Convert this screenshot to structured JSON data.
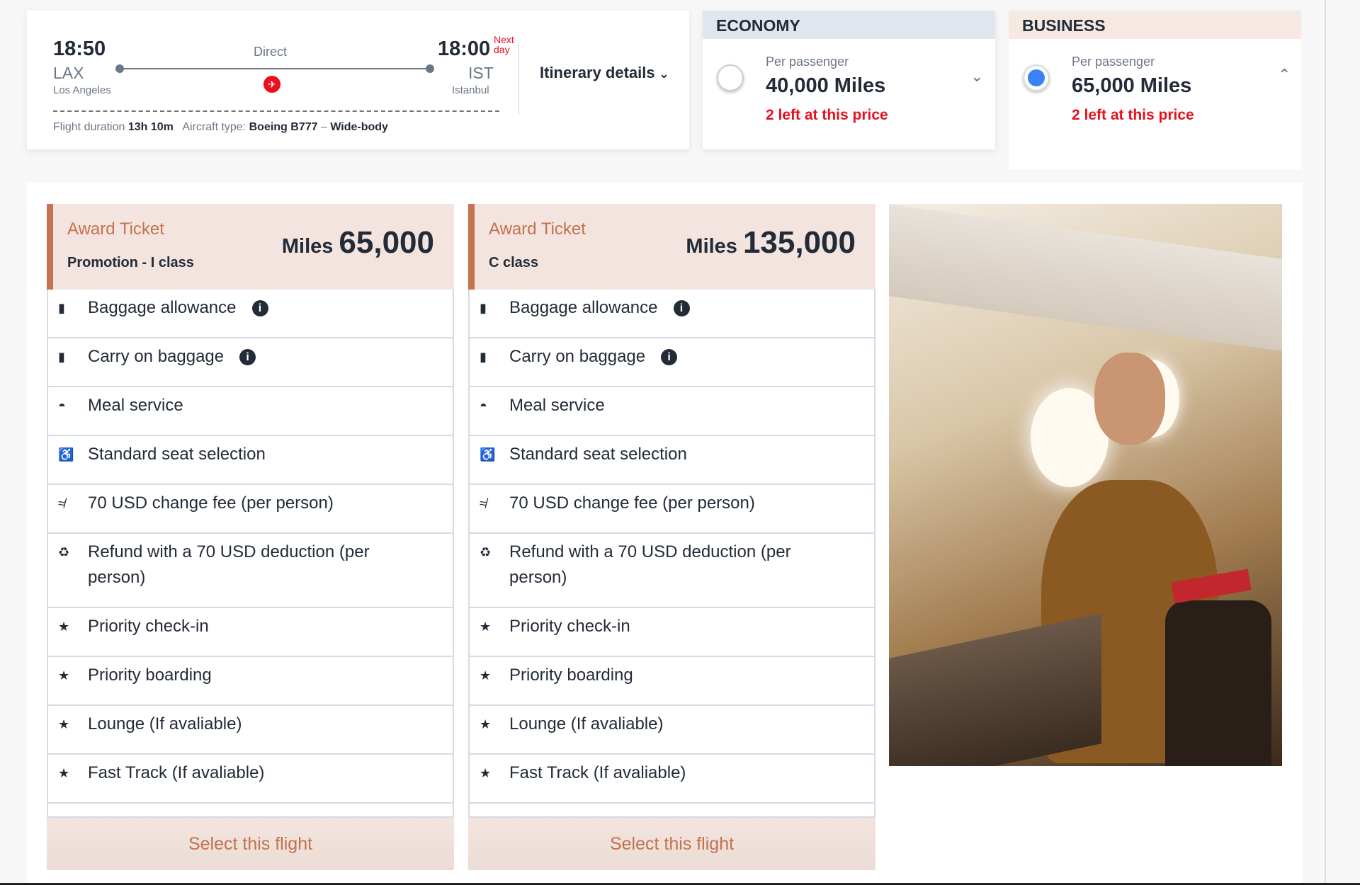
{
  "flight": {
    "dep_time": "18:50",
    "dep_code": "LAX",
    "dep_city": "Los Angeles",
    "arr_time": "18:00",
    "next_day": "Next day",
    "arr_code": "IST",
    "arr_city": "Istanbul",
    "stops": "Direct",
    "duration_label": "Flight duration",
    "duration": "13h 10m",
    "aircraft_label": "Aircraft type:",
    "aircraft": "Boeing B777",
    "body": "Wide-body",
    "itinerary": "Itinerary details"
  },
  "cabins": [
    {
      "name": "ECONOMY",
      "per": "Per passenger",
      "miles": "40,000 Miles",
      "avail": "2 left at this price",
      "selected": false,
      "header_color": "#e1e5ed"
    },
    {
      "name": "BUSINESS",
      "per": "Per passenger",
      "miles": "65,000 Miles",
      "avail": "2 left at this price",
      "selected": true,
      "header_color": "#f6e9e2"
    }
  ],
  "fares": [
    {
      "title": "Award Ticket",
      "class": "Promotion - I class",
      "miles_label": "Miles",
      "miles": "65,000",
      "button": "Select this flight"
    },
    {
      "title": "Award Ticket",
      "class": "C class",
      "miles_label": "Miles",
      "miles": "135,000",
      "button": "Select this flight"
    }
  ],
  "features": [
    {
      "icon": "baggage-icon",
      "glyph": "▮",
      "label": "Baggage allowance",
      "info": true
    },
    {
      "icon": "carry-on-icon",
      "glyph": "▮",
      "label": "Carry on baggage",
      "info": true
    },
    {
      "icon": "meal-icon",
      "glyph": "◓",
      "label": "Meal service"
    },
    {
      "icon": "seat-icon",
      "glyph": "♿",
      "label": "Standard seat selection"
    },
    {
      "icon": "change-icon",
      "glyph": "≉",
      "label": "70 USD change fee (per person)"
    },
    {
      "icon": "refund-icon",
      "glyph": "♻",
      "label": "Refund with a 70 USD deduction (per person)"
    },
    {
      "icon": "star-icon",
      "glyph": "★",
      "label": "Priority check-in"
    },
    {
      "icon": "star-icon",
      "glyph": "★",
      "label": "Priority boarding"
    },
    {
      "icon": "star-icon",
      "glyph": "★",
      "label": "Lounge (If avaliable)"
    },
    {
      "icon": "star-icon",
      "glyph": "★",
      "label": "Fast Track (If avaliable)"
    }
  ],
  "colors": {
    "accent": "#c4724f",
    "alert": "#e8101c",
    "radio_selected": "#3b82f6"
  }
}
